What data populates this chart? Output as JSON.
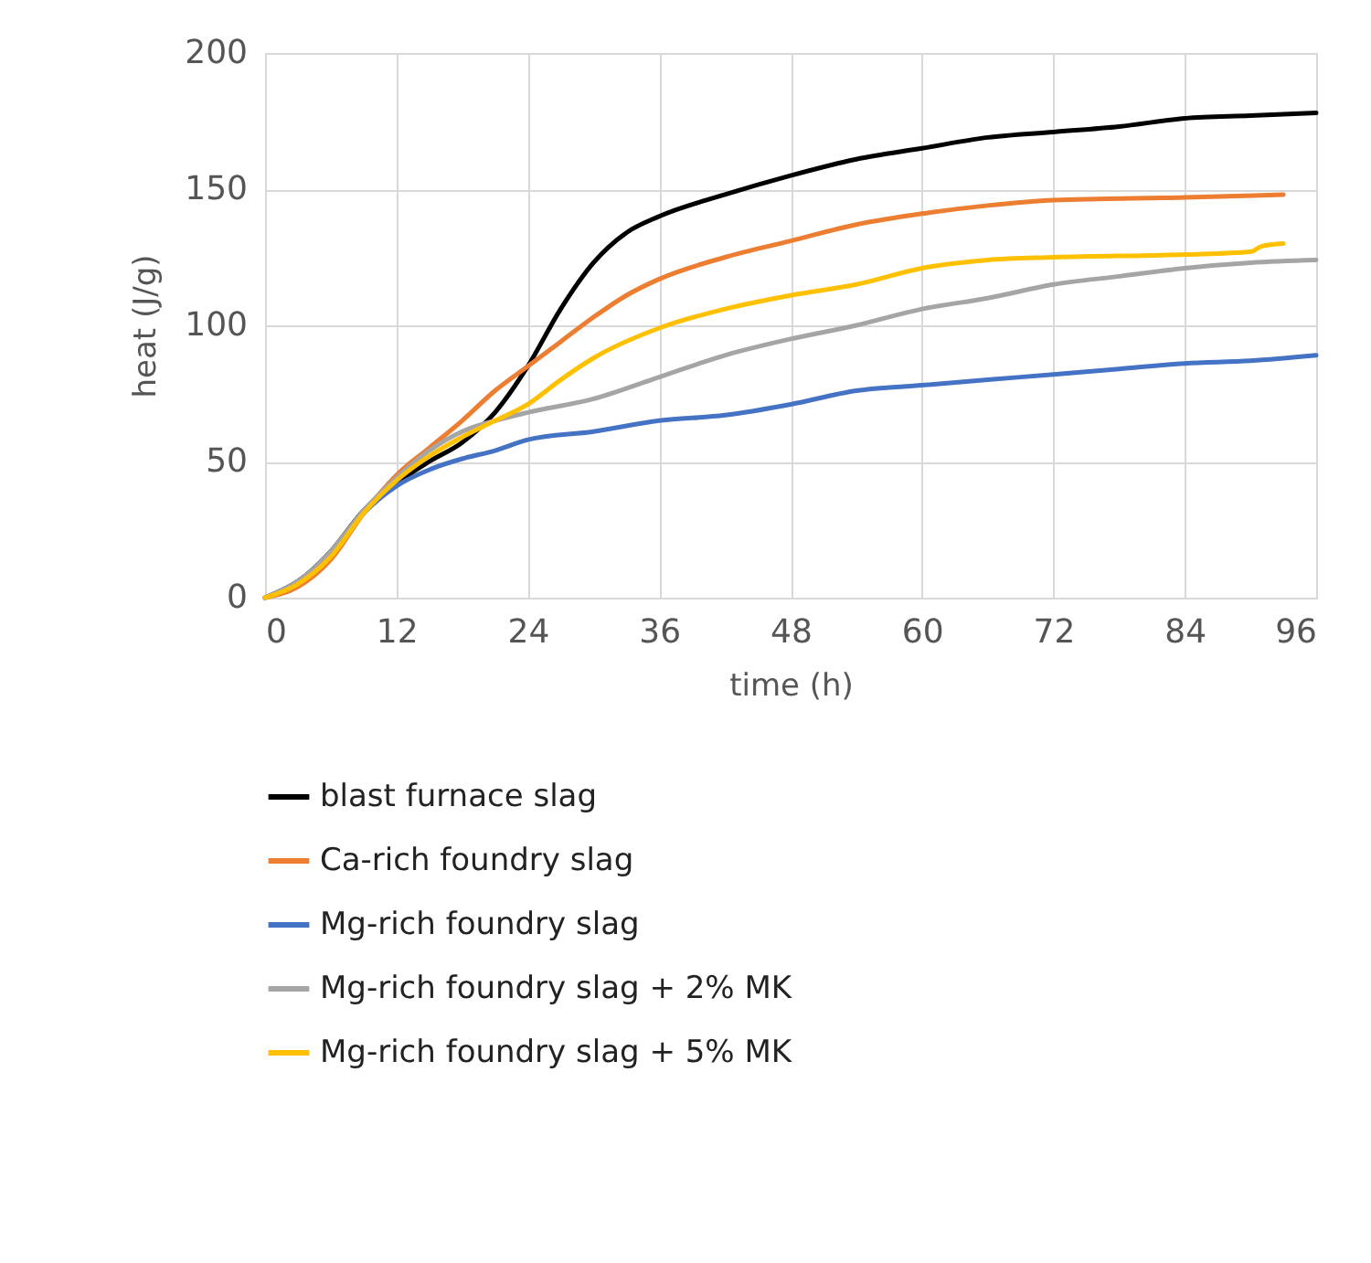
{
  "chart_data": {
    "type": "line",
    "xlabel": "time (h)",
    "ylabel": "heat (J/g)",
    "x": [
      0,
      3,
      6,
      9,
      12,
      15,
      18,
      21,
      24,
      27,
      30,
      33,
      36,
      42,
      48,
      54,
      60,
      66,
      72,
      78,
      84,
      90,
      96
    ],
    "series": [
      {
        "name": "blast furnace slag",
        "color": "#000000",
        "values": [
          0,
          6,
          17,
          32,
          42,
          50,
          57,
          68,
          85,
          106,
          123,
          134,
          140,
          148,
          155,
          161,
          165,
          169,
          171,
          173,
          176,
          177,
          178
        ]
      },
      {
        "name": "Ca-rich foundry slag",
        "color": "#ed7d31",
        "x": [
          0,
          3,
          6,
          9,
          12,
          15,
          18,
          21,
          24,
          27,
          30,
          33,
          36,
          42,
          48,
          54,
          60,
          66,
          72,
          84,
          93
        ],
        "values": [
          0,
          4,
          14,
          31,
          45,
          55,
          65,
          76,
          85,
          94,
          103,
          111,
          117,
          125,
          131,
          137,
          141,
          144,
          146,
          147,
          148
        ]
      },
      {
        "name": "Mg-rich foundry slag",
        "color": "#4472c4",
        "x": [
          0,
          3,
          6,
          9,
          12,
          15,
          18,
          21,
          24,
          30,
          36,
          42,
          48,
          54,
          60,
          66,
          72,
          78,
          84,
          90,
          96
        ],
        "values": [
          0,
          6,
          16,
          31,
          41,
          47,
          51,
          54,
          58,
          61,
          65,
          67,
          71,
          76,
          78,
          80,
          82,
          84,
          86,
          87,
          89
        ]
      },
      {
        "name": "Mg-rich foundry slag + 2% MK",
        "color": "#a5a5a5",
        "x": [
          0,
          3,
          6,
          9,
          12,
          15,
          18,
          21,
          24,
          30,
          36,
          42,
          48,
          54,
          60,
          66,
          72,
          78,
          84,
          90,
          96
        ],
        "values": [
          0,
          6,
          17,
          32,
          44,
          54,
          61,
          65,
          68,
          73,
          81,
          89,
          95,
          100,
          106,
          110,
          115,
          118,
          121,
          123,
          124
        ]
      },
      {
        "name": "Mg-rich foundry slag + 5% MK",
        "color": "#ffc000",
        "x": [
          0,
          3,
          6,
          9,
          12,
          15,
          18,
          21,
          24,
          27,
          30,
          36,
          42,
          48,
          54,
          60,
          66,
          72,
          84,
          90,
          91,
          93
        ],
        "values": [
          0,
          5,
          15,
          31,
          43,
          52,
          59,
          65,
          71,
          80,
          88,
          99,
          106,
          111,
          115,
          121,
          124,
          125,
          126,
          127,
          129,
          130
        ]
      }
    ],
    "xlim": [
      0,
      96
    ],
    "xticks": [
      0,
      12,
      24,
      36,
      48,
      60,
      72,
      84,
      96
    ],
    "ylim": [
      0,
      200
    ],
    "yticks": [
      0,
      50,
      100,
      150,
      200
    ],
    "grid": true,
    "legend": "bottom",
    "marker": "none",
    "line_style": "solid"
  }
}
